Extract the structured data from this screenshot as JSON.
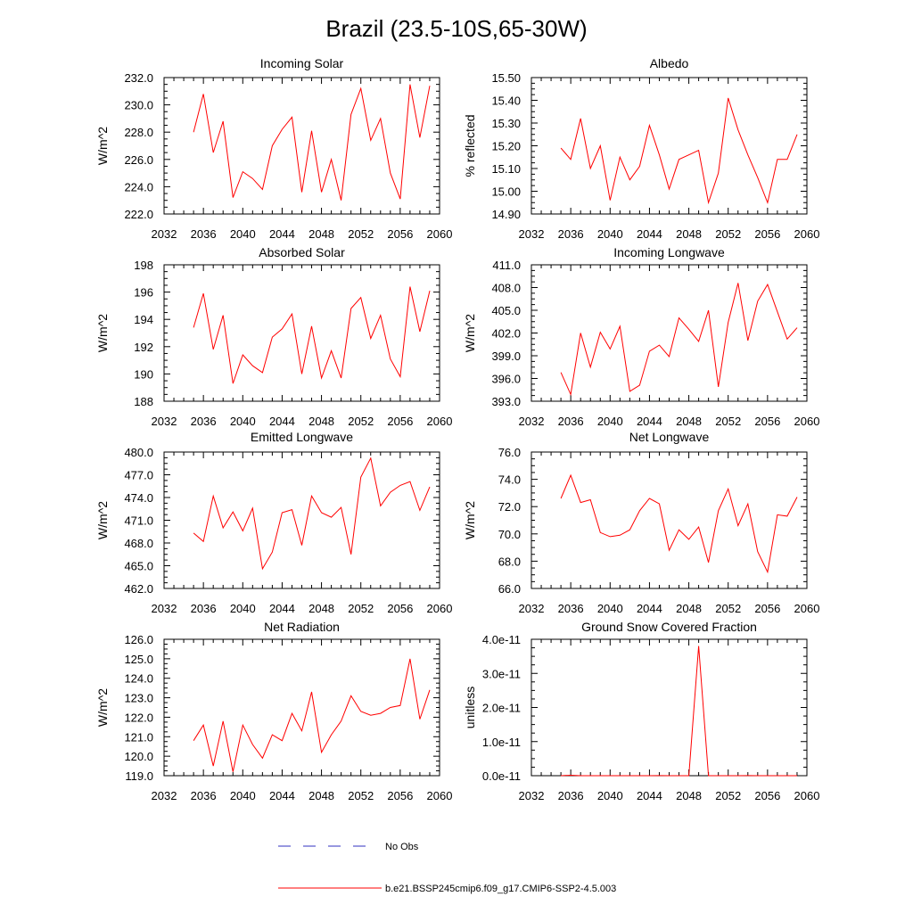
{
  "title": "Brazil (23.5-10S,65-30W)",
  "colors": {
    "model": "#ff0000",
    "obs": "#3030c0",
    "axis": "#000000"
  },
  "legend": {
    "obs_label": "No Obs",
    "model_label": "b.e21.BSSP245cmip6.f09_g17.CMIP6-SSP2-4.5.003"
  },
  "chart_data": [
    {
      "type": "line",
      "title": "Incoming Solar",
      "ylabel": "W/m^2",
      "xlim": [
        2032,
        2060
      ],
      "ylim": [
        222,
        232
      ],
      "xticks": [
        2032,
        2036,
        2040,
        2044,
        2048,
        2052,
        2056,
        2060
      ],
      "xtick_labels": [
        "2032",
        "2036",
        "2040",
        "2044",
        "2048",
        "2052",
        "2056",
        "2060"
      ],
      "yticks": [
        222,
        224,
        226,
        228,
        230,
        232
      ],
      "ytick_labels": [
        "222.0",
        "224.0",
        "226.0",
        "228.0",
        "230.0",
        "232.0"
      ],
      "x": [
        2035,
        2036,
        2037,
        2038,
        2039,
        2040,
        2041,
        2042,
        2043,
        2044,
        2045,
        2046,
        2047,
        2048,
        2049,
        2050,
        2051,
        2052,
        2053,
        2054,
        2055,
        2056,
        2057,
        2058,
        2059
      ],
      "series": [
        {
          "name": "b.e21.BSSP245cmip6.f09_g17.CMIP6-SSP2-4.5.003",
          "values": [
            228.0,
            230.8,
            226.5,
            228.8,
            223.2,
            225.1,
            224.6,
            223.8,
            227.0,
            228.2,
            229.1,
            223.6,
            228.1,
            223.6,
            226.0,
            223.0,
            229.3,
            231.2,
            227.4,
            229.0,
            225.0,
            223.1,
            231.5,
            227.6,
            231.4
          ]
        }
      ]
    },
    {
      "type": "line",
      "title": "Albedo",
      "ylabel": "% reflected",
      "xlim": [
        2032,
        2060
      ],
      "ylim": [
        14.9,
        15.5
      ],
      "xticks": [
        2032,
        2036,
        2040,
        2044,
        2048,
        2052,
        2056,
        2060
      ],
      "xtick_labels": [
        "2032",
        "2036",
        "2040",
        "2044",
        "2048",
        "2052",
        "2056",
        "2060"
      ],
      "yticks": [
        14.9,
        15.0,
        15.1,
        15.2,
        15.3,
        15.4,
        15.5
      ],
      "ytick_labels": [
        "14.90",
        "15.00",
        "15.10",
        "15.20",
        "15.30",
        "15.40",
        "15.50"
      ],
      "x": [
        2035,
        2036,
        2037,
        2038,
        2039,
        2040,
        2041,
        2042,
        2043,
        2044,
        2045,
        2046,
        2047,
        2048,
        2049,
        2050,
        2051,
        2052,
        2053,
        2054,
        2055,
        2056,
        2057,
        2058,
        2059
      ],
      "series": [
        {
          "name": "b.e21.BSSP245cmip6.f09_g17.CMIP6-SSP2-4.5.003",
          "values": [
            15.19,
            15.14,
            15.32,
            15.1,
            15.2,
            14.96,
            15.15,
            15.05,
            15.11,
            15.29,
            15.16,
            15.01,
            15.14,
            15.16,
            15.18,
            14.95,
            15.08,
            15.41,
            15.27,
            15.16,
            15.06,
            14.95,
            15.14,
            15.14,
            15.25
          ]
        }
      ]
    },
    {
      "type": "line",
      "title": "Absorbed Solar",
      "ylabel": "W/m^2",
      "xlim": [
        2032,
        2060
      ],
      "ylim": [
        188,
        198
      ],
      "xticks": [
        2032,
        2036,
        2040,
        2044,
        2048,
        2052,
        2056,
        2060
      ],
      "xtick_labels": [
        "2032",
        "2036",
        "2040",
        "2044",
        "2048",
        "2052",
        "2056",
        "2060"
      ],
      "yticks": [
        188,
        190,
        192,
        194,
        196,
        198
      ],
      "ytick_labels": [
        "188",
        "190",
        "192",
        "194",
        "196",
        "198"
      ],
      "x": [
        2035,
        2036,
        2037,
        2038,
        2039,
        2040,
        2041,
        2042,
        2043,
        2044,
        2045,
        2046,
        2047,
        2048,
        2049,
        2050,
        2051,
        2052,
        2053,
        2054,
        2055,
        2056,
        2057,
        2058,
        2059
      ],
      "series": [
        {
          "name": "b.e21.BSSP245cmip6.f09_g17.CMIP6-SSP2-4.5.003",
          "values": [
            193.4,
            195.9,
            191.8,
            194.3,
            189.3,
            191.4,
            190.6,
            190.1,
            192.7,
            193.3,
            194.4,
            190.0,
            193.5,
            189.7,
            191.7,
            189.7,
            194.8,
            195.6,
            192.6,
            194.3,
            191.1,
            189.8,
            196.4,
            193.1,
            196.1
          ]
        }
      ]
    },
    {
      "type": "line",
      "title": "Incoming Longwave",
      "ylabel": "W/m^2",
      "xlim": [
        2032,
        2060
      ],
      "ylim": [
        393,
        411
      ],
      "xticks": [
        2032,
        2036,
        2040,
        2044,
        2048,
        2052,
        2056,
        2060
      ],
      "xtick_labels": [
        "2032",
        "2036",
        "2040",
        "2044",
        "2048",
        "2052",
        "2056",
        "2060"
      ],
      "yticks": [
        393,
        396,
        399,
        402,
        405,
        408,
        411
      ],
      "ytick_labels": [
        "393.0",
        "396.0",
        "399.0",
        "402.0",
        "405.0",
        "408.0",
        "411.0"
      ],
      "x": [
        2035,
        2036,
        2037,
        2038,
        2039,
        2040,
        2041,
        2042,
        2043,
        2044,
        2045,
        2046,
        2047,
        2048,
        2049,
        2050,
        2051,
        2052,
        2053,
        2054,
        2055,
        2056,
        2057,
        2058,
        2059
      ],
      "series": [
        {
          "name": "b.e21.BSSP245cmip6.f09_g17.CMIP6-SSP2-4.5.003",
          "values": [
            396.8,
            393.9,
            402.0,
            397.5,
            402.1,
            399.9,
            402.9,
            394.3,
            395.1,
            399.6,
            400.4,
            398.9,
            404.0,
            402.5,
            400.9,
            405.0,
            394.9,
            403.4,
            408.6,
            401.0,
            406.2,
            408.4,
            404.8,
            401.2,
            402.7
          ]
        }
      ]
    },
    {
      "type": "line",
      "title": "Emitted Longwave",
      "ylabel": "W/m^2",
      "xlim": [
        2032,
        2060
      ],
      "ylim": [
        462,
        480
      ],
      "xticks": [
        2032,
        2036,
        2040,
        2044,
        2048,
        2052,
        2056,
        2060
      ],
      "xtick_labels": [
        "2032",
        "2036",
        "2040",
        "2044",
        "2048",
        "2052",
        "2056",
        "2060"
      ],
      "yticks": [
        462,
        465,
        468,
        471,
        474,
        477,
        480
      ],
      "ytick_labels": [
        "462.0",
        "465.0",
        "468.0",
        "471.0",
        "474.0",
        "477.0",
        "480.0"
      ],
      "x": [
        2035,
        2036,
        2037,
        2038,
        2039,
        2040,
        2041,
        2042,
        2043,
        2044,
        2045,
        2046,
        2047,
        2048,
        2049,
        2050,
        2051,
        2052,
        2053,
        2054,
        2055,
        2056,
        2057,
        2058,
        2059
      ],
      "series": [
        {
          "name": "b.e21.BSSP245cmip6.f09_g17.CMIP6-SSP2-4.5.003",
          "values": [
            469.3,
            468.2,
            474.2,
            470.0,
            472.1,
            469.6,
            472.6,
            464.6,
            466.8,
            472.0,
            472.4,
            467.7,
            474.2,
            472.0,
            471.4,
            472.7,
            466.5,
            476.7,
            479.2,
            472.9,
            474.7,
            475.6,
            476.1,
            472.3,
            475.4
          ]
        }
      ]
    },
    {
      "type": "line",
      "title": "Net Longwave",
      "ylabel": "W/m^2",
      "xlim": [
        2032,
        2060
      ],
      "ylim": [
        66,
        76
      ],
      "xticks": [
        2032,
        2036,
        2040,
        2044,
        2048,
        2052,
        2056,
        2060
      ],
      "xtick_labels": [
        "2032",
        "2036",
        "2040",
        "2044",
        "2048",
        "2052",
        "2056",
        "2060"
      ],
      "yticks": [
        66,
        68,
        70,
        72,
        74,
        76
      ],
      "ytick_labels": [
        "66.0",
        "68.0",
        "70.0",
        "72.0",
        "74.0",
        "76.0"
      ],
      "x": [
        2035,
        2036,
        2037,
        2038,
        2039,
        2040,
        2041,
        2042,
        2043,
        2044,
        2045,
        2046,
        2047,
        2048,
        2049,
        2050,
        2051,
        2052,
        2053,
        2054,
        2055,
        2056,
        2057,
        2058,
        2059
      ],
      "series": [
        {
          "name": "b.e21.BSSP245cmip6.f09_g17.CMIP6-SSP2-4.5.003",
          "values": [
            72.6,
            74.3,
            72.3,
            72.5,
            70.1,
            69.8,
            69.9,
            70.3,
            71.7,
            72.6,
            72.2,
            68.8,
            70.3,
            69.6,
            70.5,
            67.9,
            71.7,
            73.3,
            70.6,
            72.2,
            68.7,
            67.2,
            71.4,
            71.3,
            72.7
          ]
        }
      ]
    },
    {
      "type": "line",
      "title": "Net Radiation",
      "ylabel": "W/m^2",
      "xlim": [
        2032,
        2060
      ],
      "ylim": [
        119,
        126
      ],
      "xticks": [
        2032,
        2036,
        2040,
        2044,
        2048,
        2052,
        2056,
        2060
      ],
      "xtick_labels": [
        "2032",
        "2036",
        "2040",
        "2044",
        "2048",
        "2052",
        "2056",
        "2060"
      ],
      "yticks": [
        119,
        120,
        121,
        122,
        123,
        124,
        125,
        126
      ],
      "ytick_labels": [
        "119.0",
        "120.0",
        "121.0",
        "122.0",
        "123.0",
        "124.0",
        "125.0",
        "126.0"
      ],
      "x": [
        2035,
        2036,
        2037,
        2038,
        2039,
        2040,
        2041,
        2042,
        2043,
        2044,
        2045,
        2046,
        2047,
        2048,
        2049,
        2050,
        2051,
        2052,
        2053,
        2054,
        2055,
        2056,
        2057,
        2058,
        2059
      ],
      "series": [
        {
          "name": "b.e21.BSSP245cmip6.f09_g17.CMIP6-SSP2-4.5.003",
          "values": [
            120.8,
            121.6,
            119.5,
            121.8,
            119.2,
            121.6,
            120.6,
            119.9,
            121.1,
            120.8,
            122.2,
            121.3,
            123.3,
            120.2,
            121.1,
            121.8,
            123.1,
            122.3,
            122.1,
            122.2,
            122.5,
            122.6,
            125.0,
            121.9,
            123.4
          ]
        }
      ]
    },
    {
      "type": "line",
      "title": "Ground Snow Covered Fraction",
      "ylabel": "unitless",
      "xlim": [
        2032,
        2060
      ],
      "ylim": [
        0,
        4e-11
      ],
      "xticks": [
        2032,
        2036,
        2040,
        2044,
        2048,
        2052,
        2056,
        2060
      ],
      "xtick_labels": [
        "2032",
        "2036",
        "2040",
        "2044",
        "2048",
        "2052",
        "2056",
        "2060"
      ],
      "yticks": [
        0,
        1e-11,
        2e-11,
        3e-11,
        4e-11
      ],
      "ytick_labels": [
        "0.0e-11",
        "1.0e-11",
        "2.0e-11",
        "3.0e-11",
        "4.0e-11"
      ],
      "x": [
        2035,
        2036,
        2037,
        2038,
        2039,
        2040,
        2041,
        2042,
        2043,
        2044,
        2045,
        2046,
        2047,
        2048,
        2049,
        2050,
        2051,
        2052,
        2053,
        2054,
        2055,
        2056,
        2057,
        2058,
        2059
      ],
      "series": [
        {
          "name": "b.e21.BSSP245cmip6.f09_g17.CMIP6-SSP2-4.5.003",
          "values": [
            0,
            1.2e-13,
            0,
            0,
            0,
            0,
            0,
            0,
            0,
            0,
            2e-14,
            0,
            0,
            0,
            3.8e-11,
            0,
            0,
            0,
            0,
            3e-14,
            0,
            0,
            0,
            0,
            0
          ]
        }
      ]
    }
  ]
}
